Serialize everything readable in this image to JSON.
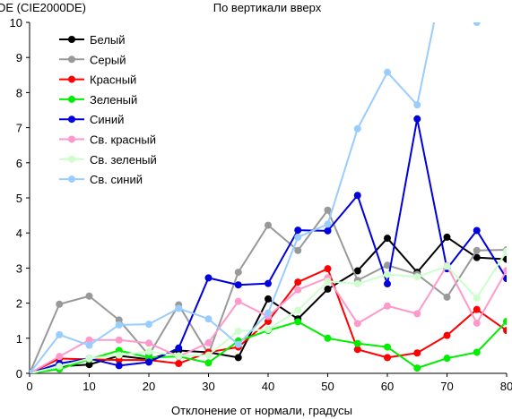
{
  "chart_data": {
    "type": "line",
    "title": "По вертикали вверх",
    "ylabel": "DE (CIE2000DE)",
    "xlabel": "Отклонение от нормали, градусы",
    "x": [
      0,
      5,
      10,
      15,
      20,
      25,
      30,
      35,
      40,
      45,
      50,
      55,
      60,
      65,
      70,
      75,
      80
    ],
    "xticks": [
      0,
      10,
      20,
      30,
      40,
      50,
      60,
      70,
      80
    ],
    "yticks": [
      0,
      1,
      2,
      3,
      4,
      5,
      6,
      7,
      8,
      9,
      10
    ],
    "xlim": [
      0,
      80
    ],
    "ylim": [
      0,
      10
    ],
    "grid": false,
    "legend_position": "top-left",
    "series": [
      {
        "name": "Белый",
        "color": "#000000",
        "values": [
          0,
          0.2,
          0.25,
          0.5,
          0.4,
          0.65,
          0.6,
          0.45,
          2.12,
          1.55,
          2.4,
          2.92,
          3.85,
          2.88,
          3.88,
          3.3,
          3.25
        ]
      },
      {
        "name": "Серый",
        "color": "#999999",
        "values": [
          0,
          1.97,
          2.2,
          1.52,
          0.52,
          1.95,
          0.55,
          2.88,
          4.22,
          3.5,
          4.65,
          2.65,
          3.08,
          2.82,
          2.17,
          3.5,
          3.52
        ]
      },
      {
        "name": "Красный",
        "color": "#ff0000",
        "values": [
          0,
          0.42,
          0.4,
          0.38,
          0.38,
          0.28,
          0.6,
          0.75,
          1.48,
          2.6,
          2.98,
          0.68,
          0.45,
          0.58,
          1.08,
          1.82,
          1.22
        ]
      },
      {
        "name": "Зеленый",
        "color": "#00ee00",
        "values": [
          0,
          0.12,
          0.4,
          0.65,
          0.45,
          0.48,
          0.3,
          0.92,
          1.22,
          1.47,
          1.0,
          0.85,
          0.75,
          0.15,
          0.43,
          0.6,
          1.48
        ]
      },
      {
        "name": "Синий",
        "color": "#0000dd",
        "values": [
          0,
          0.28,
          0.42,
          0.22,
          0.32,
          0.72,
          2.72,
          2.52,
          2.56,
          4.08,
          4.06,
          5.07,
          2.55,
          7.25,
          2.98,
          4.07,
          2.7
        ]
      },
      {
        "name": "Св. красный",
        "color": "#ff99cc",
        "values": [
          0,
          0.48,
          0.95,
          0.95,
          0.86,
          0.48,
          0.87,
          2.05,
          1.62,
          2.38,
          2.72,
          1.42,
          1.92,
          1.7,
          3.07,
          1.43,
          2.93
        ]
      },
      {
        "name": "Св. зеленый",
        "color": "#ccffcc",
        "values": [
          0,
          0.2,
          0.42,
          0.52,
          0.62,
          0.5,
          0.52,
          1.2,
          1.25,
          1.8,
          2.62,
          2.55,
          2.82,
          2.75,
          3.05,
          2.15,
          3.48
        ]
      },
      {
        "name": "Св. синий",
        "color": "#99ccff",
        "values": [
          0,
          1.1,
          0.8,
          1.38,
          1.4,
          1.85,
          1.55,
          0.82,
          1.72,
          3.88,
          4.25,
          6.97,
          8.58,
          7.65,
          11.8,
          10.0,
          null
        ]
      }
    ]
  }
}
